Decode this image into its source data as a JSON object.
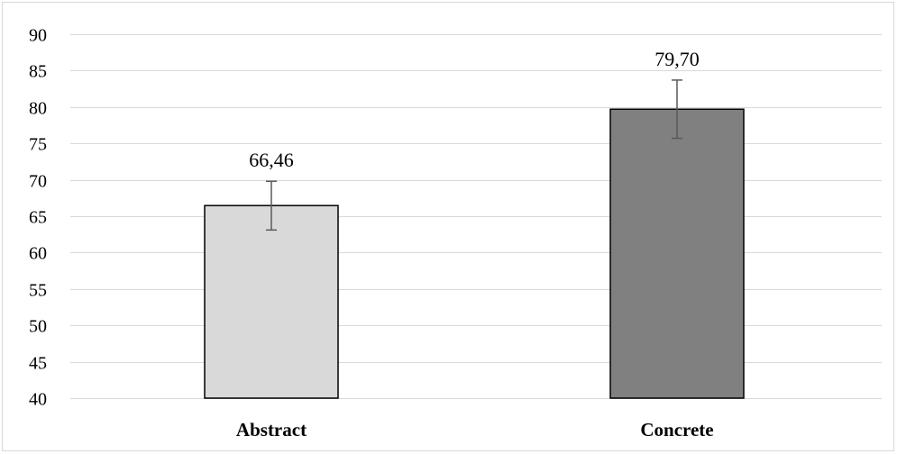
{
  "chart_data": {
    "type": "bar",
    "title": "",
    "xlabel": "",
    "ylabel": "",
    "categories": [
      "Abstract",
      "Concrete"
    ],
    "values": [
      66.46,
      79.7
    ],
    "value_labels": [
      "66,46",
      "79,70"
    ],
    "error_bars": [
      {
        "low": 63.1,
        "high": 69.8
      },
      {
        "low": 75.7,
        "high": 83.7
      }
    ],
    "bar_colors": [
      "#d9d9d9",
      "#808080"
    ],
    "ylim": [
      40,
      90
    ],
    "y_ticks": [
      "40",
      "45",
      "50",
      "55",
      "60",
      "65",
      "70",
      "75",
      "80",
      "85",
      "90"
    ],
    "grid": true,
    "legend": "none"
  }
}
